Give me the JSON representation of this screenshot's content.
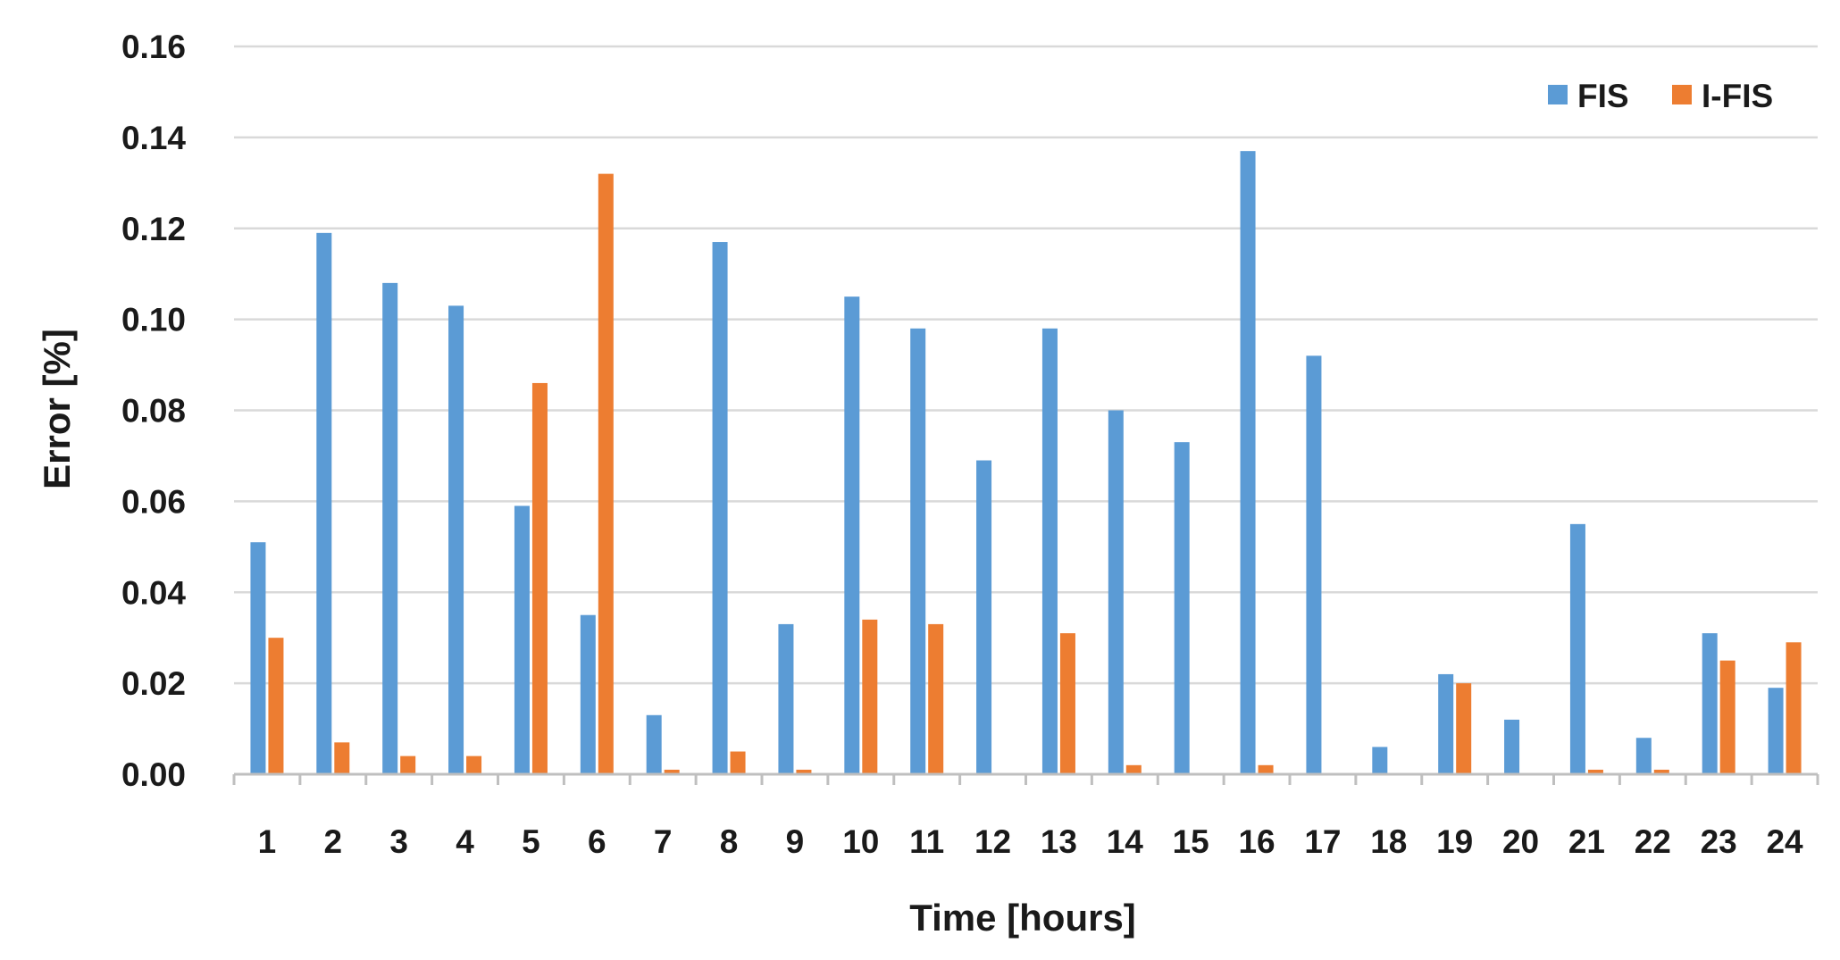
{
  "chart_data": {
    "type": "bar",
    "title": "",
    "xlabel": "Time [hours]",
    "ylabel": "Error [%]",
    "categories": [
      "1",
      "2",
      "3",
      "4",
      "5",
      "6",
      "7",
      "8",
      "9",
      "10",
      "11",
      "12",
      "13",
      "14",
      "15",
      "16",
      "17",
      "18",
      "19",
      "20",
      "21",
      "22",
      "23",
      "24"
    ],
    "series": [
      {
        "name": "FIS",
        "color": "#5b9bd5",
        "values": [
          0.051,
          0.119,
          0.108,
          0.103,
          0.059,
          0.035,
          0.013,
          0.117,
          0.033,
          0.105,
          0.098,
          0.069,
          0.098,
          0.08,
          0.073,
          0.137,
          0.092,
          0.006,
          0.022,
          0.012,
          0.055,
          0.008,
          0.031,
          0.019
        ]
      },
      {
        "name": "I-FIS",
        "color": "#ed7d31",
        "values": [
          0.03,
          0.007,
          0.004,
          0.004,
          0.086,
          0.132,
          0.001,
          0.005,
          0.001,
          0.034,
          0.033,
          0.0,
          0.031,
          0.002,
          0.0,
          0.002,
          0.0,
          0.0,
          0.02,
          0.0,
          0.001,
          0.001,
          0.025,
          0.029
        ]
      }
    ],
    "ylim": [
      0,
      0.16
    ],
    "yticks": [
      "0.00",
      "0.02",
      "0.04",
      "0.06",
      "0.08",
      "0.10",
      "0.12",
      "0.14",
      "0.16"
    ],
    "grid": true,
    "legend": "top-right"
  }
}
